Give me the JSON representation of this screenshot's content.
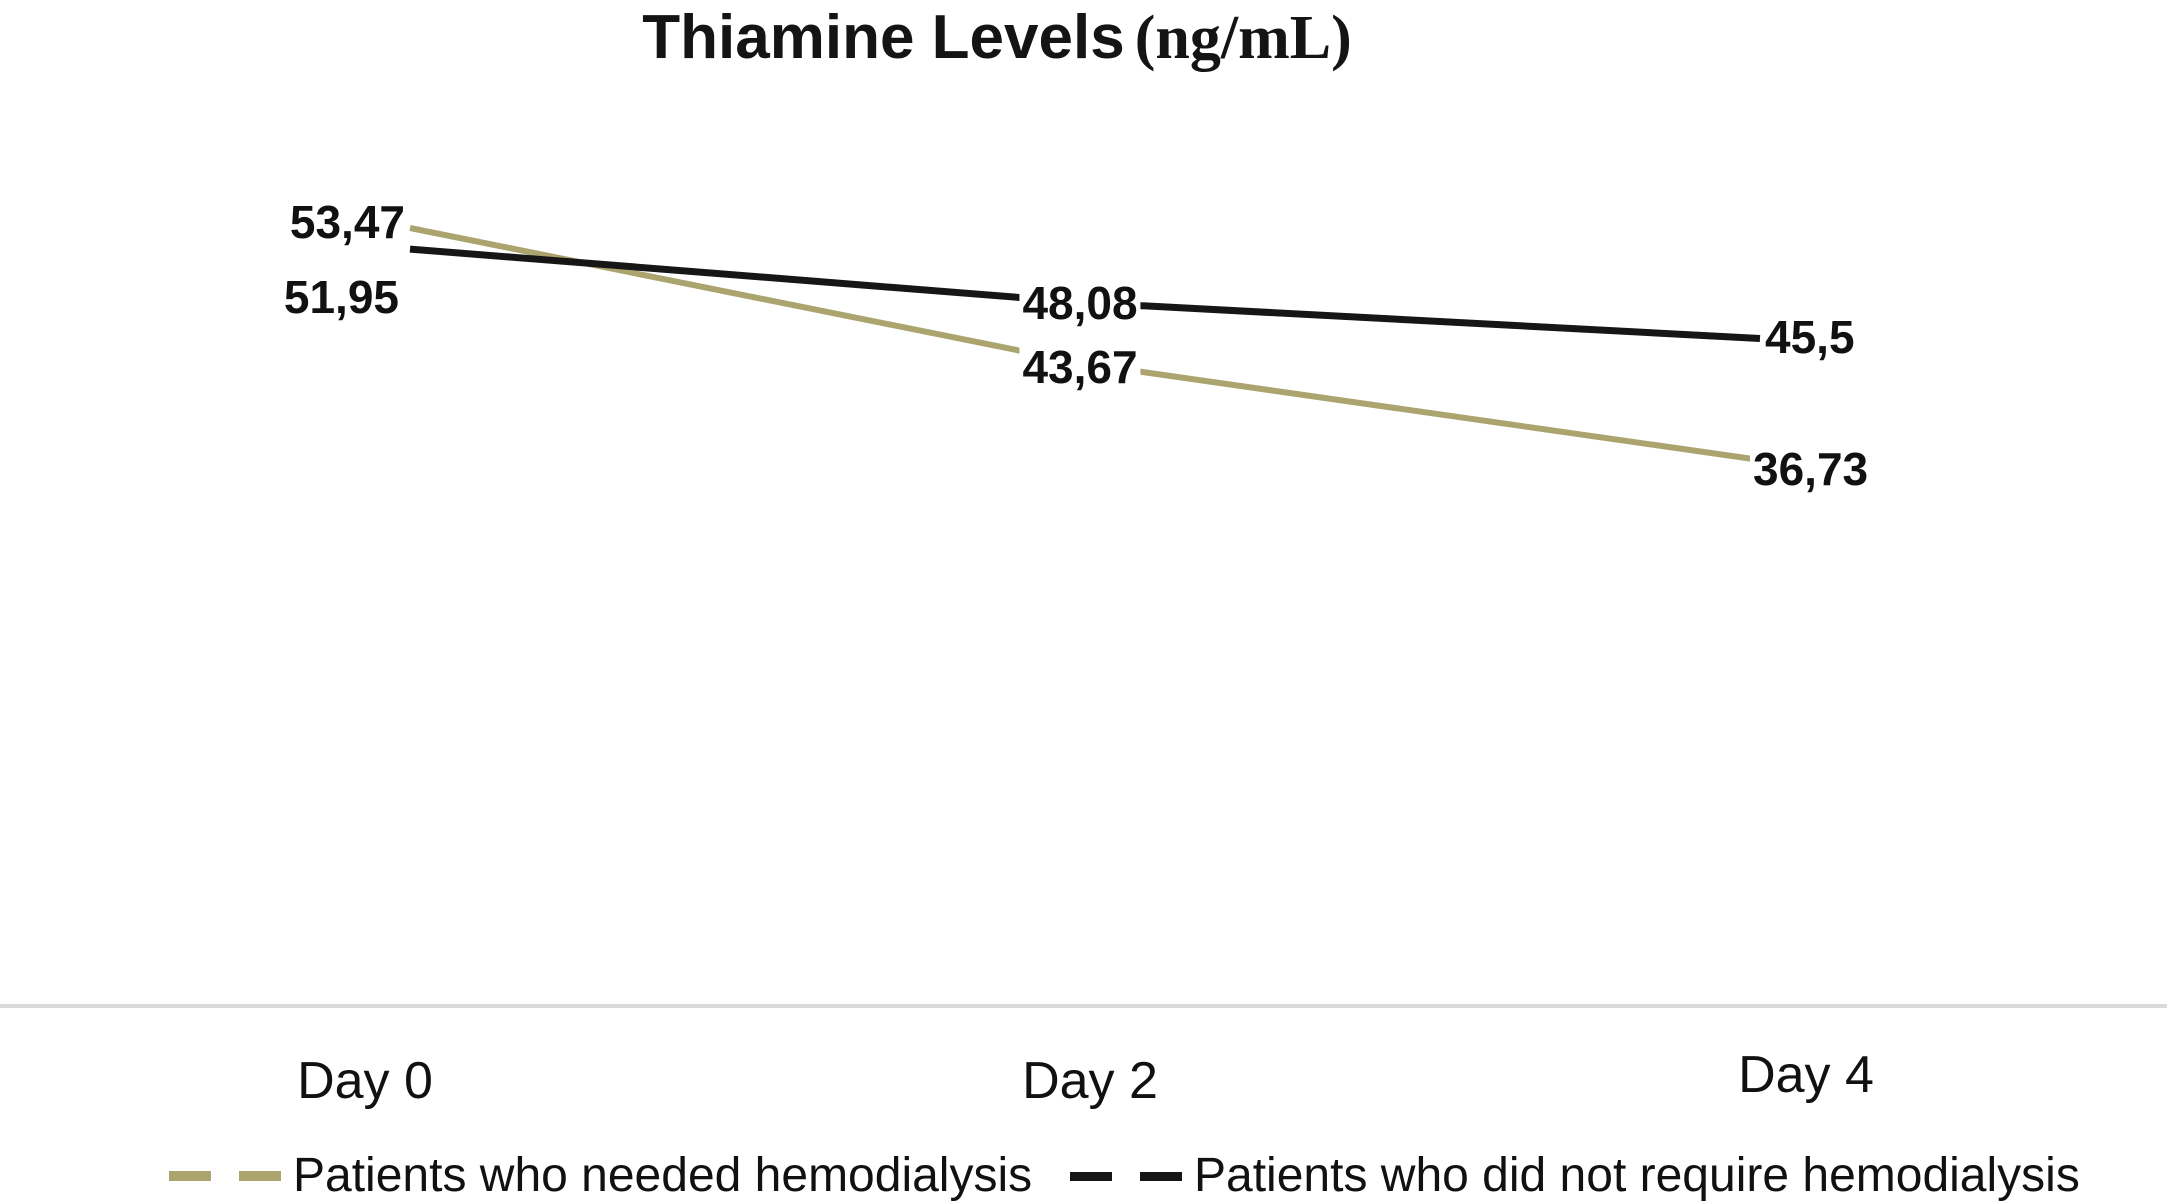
{
  "title": {
    "main": "Thiamine Levels",
    "unit": "(ng/mL)"
  },
  "chart_data": {
    "type": "line",
    "title": "Thiamine Levels (ng/mL)",
    "categories": [
      "Day 0",
      "Day 2",
      "Day 4"
    ],
    "series": [
      {
        "name": "Patients who needed hemodialysis",
        "color": "#aca46e",
        "values": [
          53.47,
          43.67,
          36.73
        ],
        "labels": [
          "53,47",
          "43,67",
          "36,73"
        ]
      },
      {
        "name": "Patients who did not require hemodialysis",
        "color": "#161616",
        "values": [
          51.95,
          48.08,
          45.5
        ],
        "labels": [
          "51,95",
          "48,08",
          "45,5"
        ]
      }
    ],
    "xlabel": "",
    "ylabel": "",
    "grid": false,
    "y_axis_visible": false,
    "x_axis_line_color": "#d9d9d9",
    "legend_position": "bottom",
    "data_labels_shown": true,
    "decimal_separator": ","
  }
}
